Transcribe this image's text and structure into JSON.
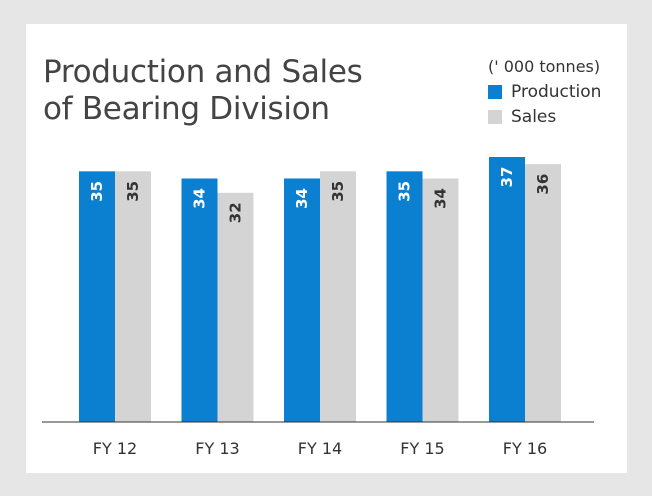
{
  "chart_data": {
    "type": "bar",
    "title_lines": [
      "Production  and  Sales",
      "of Bearing Division"
    ],
    "unit": "(' 000 tonnes)",
    "categories": [
      "FY 12",
      "FY 13",
      "FY 14",
      "FY 15",
      "FY 16"
    ],
    "series": [
      {
        "name": "Production",
        "values": [
          35,
          34,
          34,
          35,
          37
        ],
        "color": "#0b7fd0",
        "label_color": "#ffffff"
      },
      {
        "name": "Sales",
        "values": [
          35,
          32,
          35,
          34,
          36
        ],
        "color": "#d4d4d4",
        "label_color": "#333333"
      }
    ],
    "xlabel": "",
    "ylabel": "",
    "ylim": [
      0,
      37
    ],
    "grid": false,
    "legend": "top-right"
  }
}
